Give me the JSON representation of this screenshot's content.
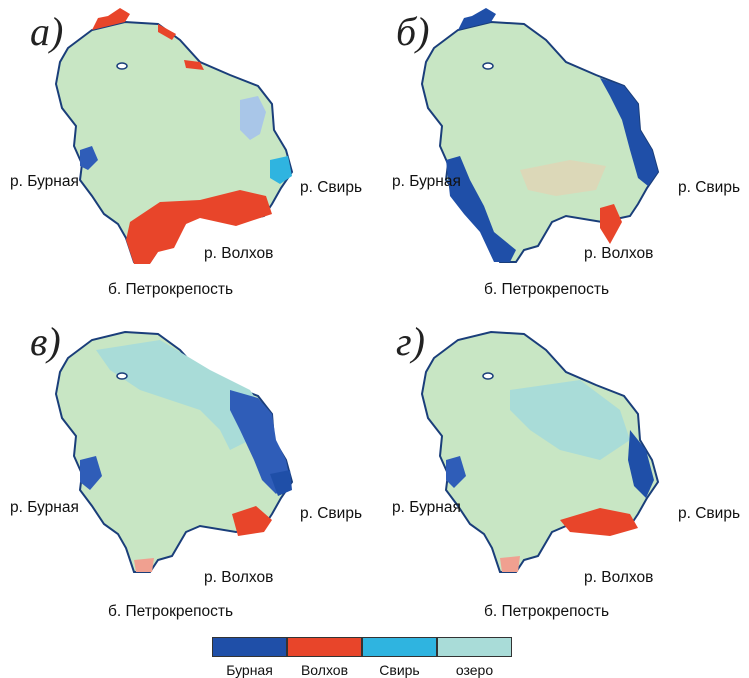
{
  "panels": [
    {
      "letter": "а)",
      "bottom_label": "б. Петрокрепость",
      "left_label": "р. Бурная",
      "right_label": "р. Свирь",
      "river_label": "р. Волхов"
    },
    {
      "letter": "б)",
      "bottom_label": "б. Петрокрепость",
      "left_label": "р. Бурная",
      "right_label": "р. Свирь",
      "river_label": "р. Волхов"
    },
    {
      "letter": "в)",
      "bottom_label": "б. Петрокрепость",
      "left_label": "р. Бурная",
      "right_label": "р. Свирь",
      "river_label": "р. Волхов"
    },
    {
      "letter": "г)",
      "bottom_label": "б. Петрокрепость",
      "left_label": "р. Бурная",
      "right_label": "р. Свирь",
      "river_label": "р. Волхов"
    }
  ],
  "legend": [
    {
      "label": "Бурная",
      "color": "#1f4fa8"
    },
    {
      "label": "Волхов",
      "color": "#e8452a"
    },
    {
      "label": "Свирь",
      "color": "#2fb4e0"
    },
    {
      "label": "озеро",
      "color": "#a9dcd8"
    }
  ],
  "colors": {
    "lake": "#c8e6c4",
    "outline": "#1a3e7a"
  }
}
